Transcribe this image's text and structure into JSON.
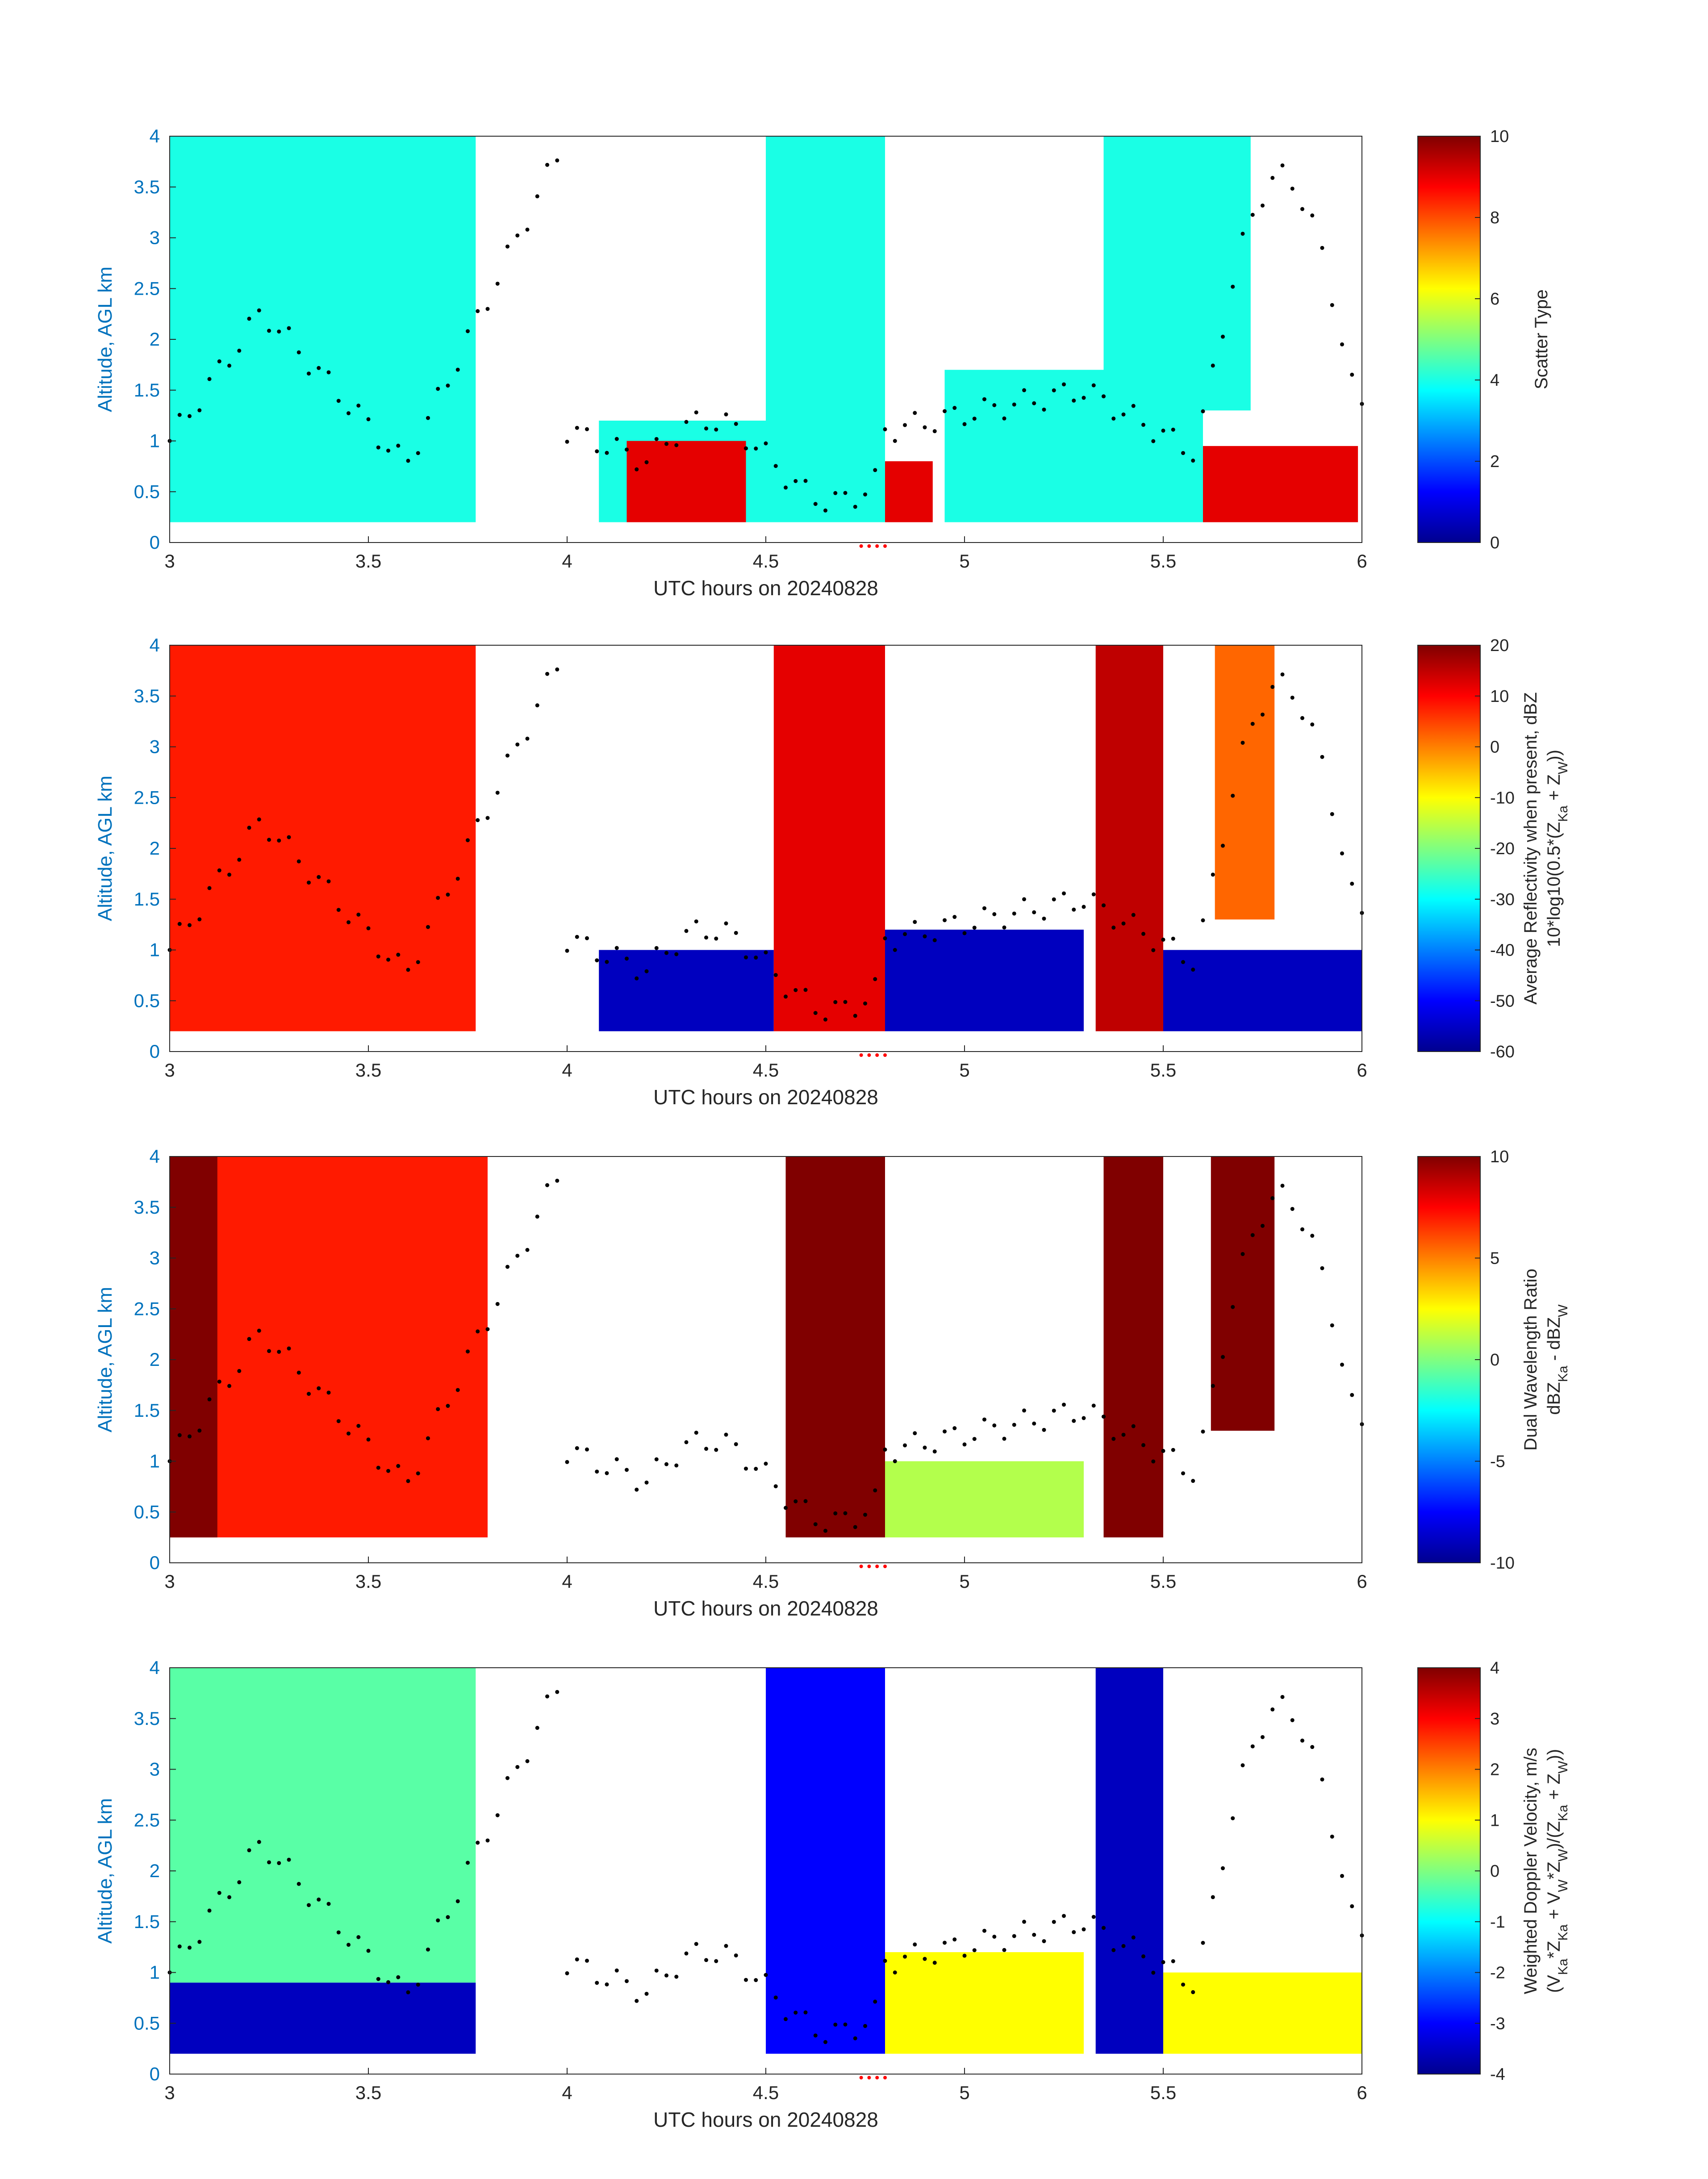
{
  "chart_data": [
    {
      "type": "heatmap",
      "id": "scatter_type",
      "xlabel": "UTC hours on 20240828",
      "ylabel": "Altitude, AGL km",
      "xlim": [
        3,
        6
      ],
      "ylim": [
        0,
        4
      ],
      "xticks": [
        "3",
        "3.5",
        "4",
        "4.5",
        "5",
        "5.5",
        "6"
      ],
      "yticks": [
        "0",
        "0.5",
        "1",
        "1.5",
        "2",
        "2.5",
        "3",
        "3.5",
        "4"
      ],
      "colorbar": {
        "label_lines": [
          "Scatter Type"
        ],
        "range": [
          0,
          10
        ],
        "ticks": [
          "0",
          "2",
          "4",
          "6",
          "8",
          "10"
        ]
      },
      "colormap": "jet",
      "approx_fields": [
        {
          "x": [
            3.0,
            3.77
          ],
          "y": [
            0.2,
            4.0
          ],
          "value": 4
        },
        {
          "x": [
            4.08,
            4.55
          ],
          "y": [
            0.2,
            1.2
          ],
          "value": 4
        },
        {
          "x": [
            4.5,
            4.8
          ],
          "y": [
            0.2,
            4.0
          ],
          "value": 4
        },
        {
          "x": [
            4.95,
            5.35
          ],
          "y": [
            0.2,
            1.7
          ],
          "value": 4
        },
        {
          "x": [
            5.35,
            5.6
          ],
          "y": [
            0.2,
            4.0
          ],
          "value": 4
        },
        {
          "x": [
            5.6,
            5.72
          ],
          "y": [
            1.3,
            4.0
          ],
          "value": 4
        },
        {
          "x": [
            4.8,
            4.92
          ],
          "y": [
            0.2,
            0.8
          ],
          "value": 9
        },
        {
          "x": [
            5.6,
            5.99
          ],
          "y": [
            0.2,
            0.95
          ],
          "value": 9
        },
        {
          "x": [
            4.15,
            4.45
          ],
          "y": [
            0.2,
            1.0
          ],
          "value": 9
        }
      ]
    },
    {
      "type": "heatmap",
      "id": "reflectivity",
      "xlabel": "UTC hours on 20240828",
      "ylabel": "Altitude, AGL km",
      "xlim": [
        3,
        6
      ],
      "ylim": [
        0,
        4
      ],
      "xticks": [
        "3",
        "3.5",
        "4",
        "4.5",
        "5",
        "5.5",
        "6"
      ],
      "yticks": [
        "0",
        "0.5",
        "1",
        "1.5",
        "2",
        "2.5",
        "3",
        "3.5",
        "4"
      ],
      "colorbar": {
        "label_lines": [
          "Average Reflectivity when present, dBZ",
          "10*log10(0.5*(Z",
          "Ka",
          " + Z",
          "W",
          "))"
        ],
        "range": [
          -60,
          20
        ],
        "ticks": [
          "-60",
          "-50",
          "-40",
          "-30",
          "-20",
          "-10",
          "0",
          "10",
          "20"
        ]
      },
      "colormap": "jet",
      "approx_fields": [
        {
          "x": [
            3.0,
            3.77
          ],
          "y": [
            0.2,
            4.0
          ],
          "value": 8
        },
        {
          "x": [
            4.08,
            4.52
          ],
          "y": [
            0.2,
            1.0
          ],
          "value": -55
        },
        {
          "x": [
            4.52,
            4.8
          ],
          "y": [
            0.2,
            4.0
          ],
          "value": 12
        },
        {
          "x": [
            4.8,
            5.3
          ],
          "y": [
            0.2,
            1.2
          ],
          "value": -55
        },
        {
          "x": [
            5.33,
            5.5
          ],
          "y": [
            0.2,
            4.0
          ],
          "value": 15
        },
        {
          "x": [
            5.5,
            6.0
          ],
          "y": [
            0.2,
            1.0
          ],
          "value": -55
        },
        {
          "x": [
            5.63,
            5.78
          ],
          "y": [
            1.3,
            4.0
          ],
          "value": 2
        }
      ]
    },
    {
      "type": "heatmap",
      "id": "dwr",
      "xlabel": "UTC hours on 20240828",
      "ylabel": "Altitude, AGL km",
      "xlim": [
        3,
        6
      ],
      "ylim": [
        0,
        4
      ],
      "xticks": [
        "3",
        "3.5",
        "4",
        "4.5",
        "5",
        "5.5",
        "6"
      ],
      "yticks": [
        "0",
        "0.5",
        "1",
        "1.5",
        "2",
        "2.5",
        "3",
        "3.5",
        "4"
      ],
      "colorbar": {
        "label_lines": [
          "Dual Wavelength Ratio",
          "dBZ",
          "Ka",
          " - dBZ",
          "W"
        ],
        "range": [
          -10,
          10
        ],
        "ticks": [
          "-10",
          "-5",
          "0",
          "5",
          "10"
        ]
      },
      "colormap": "jet",
      "approx_fields": [
        {
          "x": [
            3.0,
            3.8
          ],
          "y": [
            0.25,
            4.0
          ],
          "value": 7
        },
        {
          "x": [
            3.0,
            3.12
          ],
          "y": [
            0.25,
            4.0
          ],
          "value": 10
        },
        {
          "x": [
            4.55,
            4.8
          ],
          "y": [
            0.25,
            4.0
          ],
          "value": 10
        },
        {
          "x": [
            5.35,
            5.5
          ],
          "y": [
            0.25,
            4.0
          ],
          "value": 10
        },
        {
          "x": [
            5.62,
            5.78
          ],
          "y": [
            1.3,
            4.0
          ],
          "value": 10
        },
        {
          "x": [
            4.8,
            5.3
          ],
          "y": [
            0.25,
            1.0
          ],
          "value": 1
        }
      ]
    },
    {
      "type": "heatmap",
      "id": "doppler",
      "xlabel": "UTC hours on 20240828",
      "ylabel": "Altitude, AGL km",
      "xlim": [
        3,
        6
      ],
      "ylim": [
        0,
        4
      ],
      "xticks": [
        "3",
        "3.5",
        "4",
        "4.5",
        "5",
        "5.5",
        "6"
      ],
      "yticks": [
        "0",
        "0.5",
        "1",
        "1.5",
        "2",
        "2.5",
        "3",
        "3.5",
        "4"
      ],
      "colorbar": {
        "label_lines": [
          "Weighted Doppler Velocity, m/s",
          "(V",
          "Ka",
          "*Z",
          "Ka",
          " + V",
          "W",
          "*Z",
          "W",
          ")/(Z",
          "Ka",
          " + Z",
          "W",
          "))"
        ],
        "range": [
          -4,
          4
        ],
        "ticks": [
          "-4",
          "-3",
          "-2",
          "-1",
          "0",
          "1",
          "2",
          "3",
          "4"
        ]
      },
      "colormap": "jet",
      "approx_fields": [
        {
          "x": [
            3.0,
            3.77
          ],
          "y": [
            0.9,
            4.0
          ],
          "value": -0.3
        },
        {
          "x": [
            3.0,
            3.77
          ],
          "y": [
            0.2,
            0.9
          ],
          "value": -3.5
        },
        {
          "x": [
            4.5,
            4.8
          ],
          "y": [
            0.2,
            4.0
          ],
          "value": -3.0
        },
        {
          "x": [
            5.33,
            5.5
          ],
          "y": [
            0.2,
            4.0
          ],
          "value": -3.5
        },
        {
          "x": [
            4.8,
            5.3
          ],
          "y": [
            0.2,
            1.2
          ],
          "value": 1.0
        },
        {
          "x": [
            5.5,
            6.0
          ],
          "y": [
            0.2,
            1.0
          ],
          "value": 1.0
        }
      ]
    }
  ],
  "overlay": {
    "trajectory_color": "#000000",
    "marker_color": "#ff0000",
    "marker_x": [
      4.74,
      4.76,
      4.78,
      4.8
    ]
  }
}
